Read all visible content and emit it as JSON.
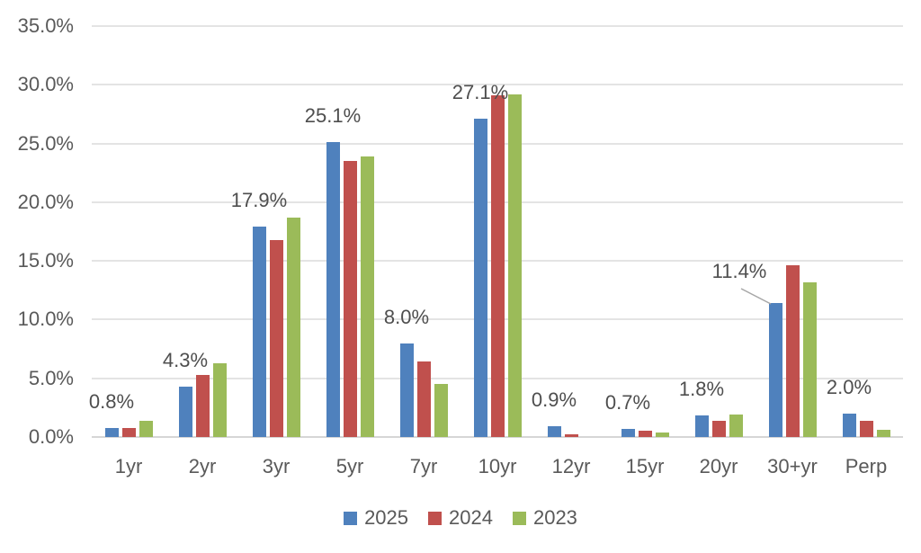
{
  "chart_data": {
    "type": "bar",
    "title": "",
    "xlabel": "",
    "ylabel": "",
    "categories": [
      "1yr",
      "2yr",
      "3yr",
      "5yr",
      "7yr",
      "10yr",
      "12yr",
      "15yr",
      "20yr",
      "30+yr",
      "Perp"
    ],
    "series": [
      {
        "name": "2025",
        "color": "#4F81BD",
        "values": [
          0.8,
          4.3,
          17.9,
          25.1,
          8.0,
          27.1,
          0.9,
          0.7,
          1.8,
          11.4,
          2.0
        ]
      },
      {
        "name": "2024",
        "color": "#C0504D",
        "values": [
          0.8,
          5.3,
          16.8,
          23.5,
          6.4,
          29.1,
          0.2,
          0.5,
          1.4,
          14.6,
          1.4
        ]
      },
      {
        "name": "2023",
        "color": "#9BBB59",
        "values": [
          1.4,
          6.3,
          18.7,
          23.9,
          4.5,
          29.2,
          0.0,
          0.4,
          1.9,
          13.2,
          0.6
        ]
      }
    ],
    "data_labels": {
      "on_series": "2025",
      "values": [
        "0.8%",
        "4.3%",
        "17.9%",
        "25.1%",
        "8.0%",
        "27.1%",
        "0.9%",
        "0.7%",
        "1.8%",
        "11.4%",
        "2.0%"
      ],
      "callout": {
        "category": "30+yr",
        "text": "11.4%"
      }
    },
    "y_axis": {
      "min": 0,
      "max": 35,
      "step": 5,
      "tick_labels": [
        "0.0%",
        "5.0%",
        "10.0%",
        "15.0%",
        "20.0%",
        "25.0%",
        "30.0%",
        "35.0%"
      ]
    },
    "ylim": [
      0,
      35
    ],
    "grid": true,
    "legend_position": "bottom",
    "legend": [
      "2025",
      "2024",
      "2023"
    ]
  },
  "colors": {
    "series_2025": "#4F81BD",
    "series_2024": "#C0504D",
    "series_2023": "#9BBB59",
    "gridline": "#E4E4E4",
    "axis_line": "#D6D6D6",
    "axis_text": "#595959",
    "data_label_text": "#4E4E4E",
    "callout_line": "#A6A6A6",
    "background": "#FFFFFF"
  }
}
